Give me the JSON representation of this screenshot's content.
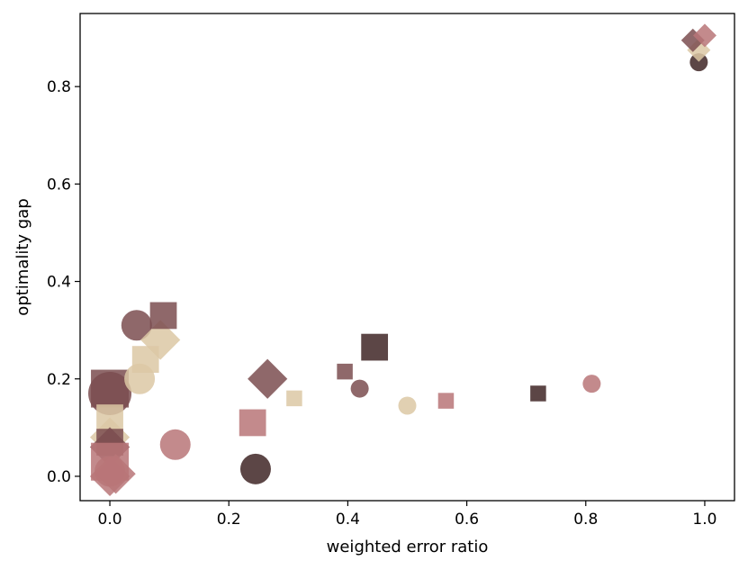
{
  "chart_data": {
    "type": "scatter",
    "title": "",
    "xlabel": "weighted error ratio",
    "ylabel": "optimality gap",
    "xlim": [
      -0.05,
      1.05
    ],
    "ylim": [
      -0.05,
      0.95
    ],
    "grid": false,
    "xticks": [
      0.0,
      0.2,
      0.4,
      0.6,
      0.8,
      1.0
    ],
    "xtick_labels": [
      "0.0",
      "0.2",
      "0.4",
      "0.6",
      "0.8",
      "1.0"
    ],
    "yticks": [
      0.0,
      0.2,
      0.4,
      0.6,
      0.8
    ],
    "ytick_labels": [
      "0.0",
      "0.2",
      "0.4",
      "0.6",
      "0.8"
    ],
    "colors": {
      "dark": "#3f2626",
      "mauve": "#7b4e50",
      "pink": "#b97578",
      "tan": "#dcc8a4"
    },
    "points": [
      {
        "x": 0.0,
        "y": 0.18,
        "marker": "square",
        "size": "xl",
        "color": "mauve"
      },
      {
        "x": 0.0,
        "y": 0.17,
        "marker": "circle",
        "size": "xl",
        "color": "mauve"
      },
      {
        "x": 0.0,
        "y": 0.12,
        "marker": "square",
        "size": "l",
        "color": "tan"
      },
      {
        "x": 0.0,
        "y": 0.08,
        "marker": "diamond",
        "size": "l",
        "color": "tan"
      },
      {
        "x": 0.0,
        "y": 0.07,
        "marker": "square",
        "size": "l",
        "color": "mauve"
      },
      {
        "x": 0.0,
        "y": 0.06,
        "marker": "diamond",
        "size": "l",
        "color": "mauve"
      },
      {
        "x": 0.0,
        "y": 0.03,
        "marker": "square",
        "size": "xl",
        "color": "pink"
      },
      {
        "x": 0.0,
        "y": 0.01,
        "marker": "circle",
        "size": "l",
        "color": "pink"
      },
      {
        "x": 0.0,
        "y": 0.0,
        "marker": "diamond",
        "size": "l",
        "color": "pink"
      },
      {
        "x": 0.01,
        "y": 0.005,
        "marker": "diamond",
        "size": "l",
        "color": "pink"
      },
      {
        "x": 0.045,
        "y": 0.31,
        "marker": "circle",
        "size": "l",
        "color": "mauve"
      },
      {
        "x": 0.05,
        "y": 0.2,
        "marker": "circle",
        "size": "l",
        "color": "tan"
      },
      {
        "x": 0.06,
        "y": 0.24,
        "marker": "square",
        "size": "l",
        "color": "tan"
      },
      {
        "x": 0.085,
        "y": 0.28,
        "marker": "diamond",
        "size": "l",
        "color": "tan"
      },
      {
        "x": 0.09,
        "y": 0.33,
        "marker": "square",
        "size": "l",
        "color": "mauve"
      },
      {
        "x": 0.11,
        "y": 0.065,
        "marker": "circle",
        "size": "l",
        "color": "pink"
      },
      {
        "x": 0.245,
        "y": 0.015,
        "marker": "circle",
        "size": "l",
        "color": "dark"
      },
      {
        "x": 0.24,
        "y": 0.11,
        "marker": "square",
        "size": "l",
        "color": "pink"
      },
      {
        "x": 0.265,
        "y": 0.2,
        "marker": "diamond",
        "size": "l",
        "color": "mauve"
      },
      {
        "x": 0.31,
        "y": 0.16,
        "marker": "square",
        "size": "s",
        "color": "tan"
      },
      {
        "x": 0.395,
        "y": 0.215,
        "marker": "square",
        "size": "s",
        "color": "mauve"
      },
      {
        "x": 0.42,
        "y": 0.18,
        "marker": "circle",
        "size": "s",
        "color": "mauve"
      },
      {
        "x": 0.445,
        "y": 0.265,
        "marker": "square",
        "size": "l",
        "color": "dark"
      },
      {
        "x": 0.5,
        "y": 0.145,
        "marker": "circle",
        "size": "s",
        "color": "tan"
      },
      {
        "x": 0.565,
        "y": 0.155,
        "marker": "square",
        "size": "s",
        "color": "pink"
      },
      {
        "x": 0.72,
        "y": 0.17,
        "marker": "square",
        "size": "s",
        "color": "dark"
      },
      {
        "x": 0.81,
        "y": 0.19,
        "marker": "circle",
        "size": "s",
        "color": "pink"
      },
      {
        "x": 0.99,
        "y": 0.85,
        "marker": "circle",
        "size": "s",
        "color": "dark"
      },
      {
        "x": 0.99,
        "y": 0.875,
        "marker": "diamond",
        "size": "s",
        "color": "tan"
      },
      {
        "x": 0.98,
        "y": 0.895,
        "marker": "diamond",
        "size": "s",
        "color": "mauve"
      },
      {
        "x": 1.0,
        "y": 0.905,
        "marker": "diamond",
        "size": "s",
        "color": "pink"
      }
    ]
  }
}
